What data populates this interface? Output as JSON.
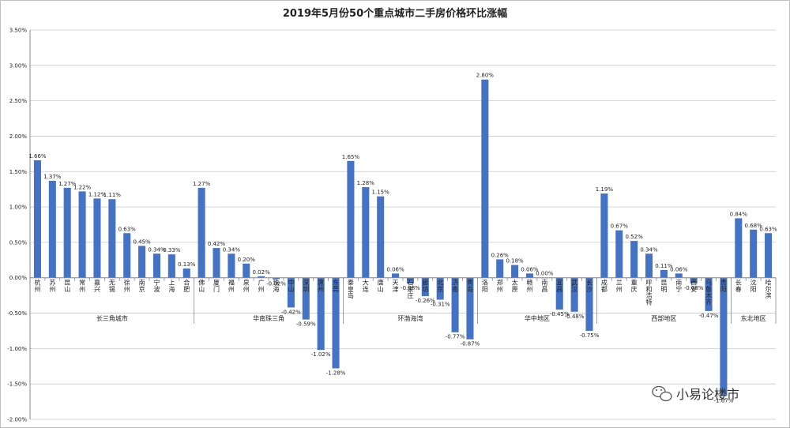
{
  "chart_data": {
    "type": "bar",
    "title": "2019年5月份50个重点城市二手房价格环比涨幅",
    "ylim": [
      -2.0,
      3.5
    ],
    "yticks": [
      "3.50%",
      "3.00%",
      "2.50%",
      "2.00%",
      "1.50%",
      "1.00%",
      "0.50%",
      "0.00%",
      "-0.50%",
      "-1.00%",
      "-1.50%",
      "-2.00%"
    ],
    "grid": true,
    "bar_color": "#4472C4",
    "groups": [
      {
        "name": "长三角城市",
        "cities": [
          {
            "name": "杭州",
            "value": 1.66,
            "label": "1.66%"
          },
          {
            "name": "苏州",
            "value": 1.37,
            "label": "1.37%"
          },
          {
            "name": "昆山",
            "value": 1.27,
            "label": "1.27%"
          },
          {
            "name": "常州",
            "value": 1.22,
            "label": "1.22%"
          },
          {
            "name": "嘉兴",
            "value": 1.12,
            "label": "1.12%"
          },
          {
            "name": "无锡",
            "value": 1.11,
            "label": "1.11%"
          },
          {
            "name": "徐州",
            "value": 0.63,
            "label": "0.63%"
          },
          {
            "name": "南京",
            "value": 0.45,
            "label": "0.45%"
          },
          {
            "name": "宁波",
            "value": 0.34,
            "label": "0.34%"
          },
          {
            "name": "上海",
            "value": 0.33,
            "label": "0.33%"
          },
          {
            "name": "合肥",
            "value": 0.13,
            "label": "0.13%"
          }
        ]
      },
      {
        "name": "华南珠三角",
        "cities": [
          {
            "name": "佛山",
            "value": 1.27,
            "label": "1.27%"
          },
          {
            "name": "厦门",
            "value": 0.42,
            "label": "0.42%"
          },
          {
            "name": "福州",
            "value": 0.34,
            "label": "0.34%"
          },
          {
            "name": "泉州",
            "value": 0.2,
            "label": "0.20%"
          },
          {
            "name": "广州",
            "value": 0.02,
            "label": "0.02%"
          },
          {
            "name": "珠海",
            "value": -0.02,
            "label": "-0.02%"
          },
          {
            "name": "中山",
            "value": -0.42,
            "label": "-0.42%"
          },
          {
            "name": "深圳",
            "value": -0.59,
            "label": "-0.59%"
          },
          {
            "name": "惠州",
            "value": -1.02,
            "label": "-1.02%"
          },
          {
            "name": "东莞",
            "value": -1.28,
            "label": "-1.28%"
          }
        ]
      },
      {
        "name": "环渤海湾",
        "cities": [
          {
            "name": "秦皇岛",
            "value": 1.65,
            "label": "1.65%"
          },
          {
            "name": "大连",
            "value": 1.28,
            "label": "1.28%"
          },
          {
            "name": "唐山",
            "value": 1.15,
            "label": "1.15%"
          },
          {
            "name": "天津",
            "value": 0.06,
            "label": "0.06%"
          },
          {
            "name": "石家庄",
            "value": -0.08,
            "label": "-0.08%"
          },
          {
            "name": "廊坊",
            "value": -0.26,
            "label": "-0.26%"
          },
          {
            "name": "北京",
            "value": -0.31,
            "label": "-0.31%"
          },
          {
            "name": "济南",
            "value": -0.77,
            "label": "-0.77%"
          },
          {
            "name": "青岛",
            "value": -0.87,
            "label": "-0.87%"
          }
        ]
      },
      {
        "name": "华中地区",
        "cities": [
          {
            "name": "洛阳",
            "value": 2.8,
            "label": "2.80%"
          },
          {
            "name": "郑州",
            "value": 0.26,
            "label": "0.26%"
          },
          {
            "name": "太原",
            "value": 0.18,
            "label": "0.18%"
          },
          {
            "name": "赣州",
            "value": 0.06,
            "label": "0.06%"
          },
          {
            "name": "南昌",
            "value": 0.0,
            "label": "0.00%"
          },
          {
            "name": "宜昌",
            "value": -0.45,
            "label": "-0.45%"
          },
          {
            "name": "武汉",
            "value": -0.48,
            "label": "-0.48%"
          },
          {
            "name": "长沙",
            "value": -0.75,
            "label": "-0.75%"
          }
        ]
      },
      {
        "name": "西部地区",
        "cities": [
          {
            "name": "成都",
            "value": 1.19,
            "label": "1.19%"
          },
          {
            "name": "兰州",
            "value": 0.67,
            "label": "0.67%"
          },
          {
            "name": "重庆",
            "value": 0.52,
            "label": "0.52%"
          },
          {
            "name": "呼和浩特",
            "value": 0.34,
            "label": "0.34%"
          },
          {
            "name": "昆明",
            "value": 0.11,
            "label": "0.11%"
          },
          {
            "name": "南宁",
            "value": 0.06,
            "label": "0.06%"
          },
          {
            "name": "西安",
            "value": -0.08,
            "label": "-0.08%"
          },
          {
            "name": "乌鲁木齐",
            "value": -0.47,
            "label": "-0.47%"
          },
          {
            "name": "贵阳",
            "value": -1.67,
            "label": "-1.67%"
          }
        ]
      },
      {
        "name": "东北地区",
        "cities": [
          {
            "name": "长春",
            "value": 0.84,
            "label": "0.84%"
          },
          {
            "name": "沈阳",
            "value": 0.68,
            "label": "0.68%"
          },
          {
            "name": "哈尔滨",
            "value": 0.63,
            "label": "0.63%"
          }
        ]
      }
    ]
  },
  "watermark": {
    "text": "小易论楼市",
    "icon": "wechat-icon"
  }
}
